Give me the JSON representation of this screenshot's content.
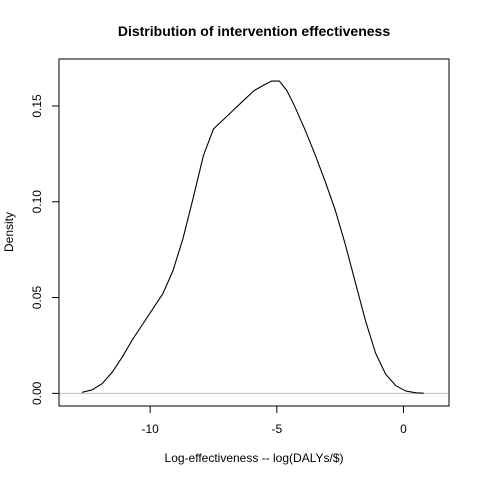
{
  "chart_data": {
    "type": "line",
    "title": "Distribution of intervention effectiveness",
    "xlabel": "Log-effectiveness -- log(DALYs/$)",
    "ylabel": "Density",
    "xlim": [
      -13.6,
      1.8
    ],
    "ylim": [
      -0.0066,
      0.1745
    ],
    "x_ticks": [
      -10,
      -5,
      0
    ],
    "x_tick_labels": [
      "-10",
      "-5",
      "0"
    ],
    "y_ticks": [
      0.0,
      0.05,
      0.1,
      0.15
    ],
    "y_tick_labels": [
      "0.00",
      "0.05",
      "0.10",
      "0.15"
    ],
    "grid": false,
    "legend": "none",
    "baseline_y": 0,
    "colors": {
      "curve": "#000000",
      "baseline": "#bebebe",
      "frame": "#000000"
    },
    "series": [
      {
        "x": [
          -12.7,
          -12.3,
          -11.9,
          -11.5,
          -11.1,
          -10.7,
          -10.3,
          -9.9,
          -9.5,
          -9.1,
          -8.7,
          -8.3,
          -7.9,
          -7.5,
          -7.1,
          -6.7,
          -6.3,
          -5.9,
          -5.5,
          -5.2,
          -4.9,
          -4.6,
          -4.3,
          -3.9,
          -3.5,
          -3.1,
          -2.7,
          -2.3,
          -1.9,
          -1.5,
          -1.1,
          -0.7,
          -0.3,
          0.1,
          0.5,
          0.8
        ],
        "y": [
          0.0005,
          0.0018,
          0.005,
          0.011,
          0.019,
          0.028,
          0.036,
          0.044,
          0.052,
          0.064,
          0.081,
          0.102,
          0.124,
          0.138,
          0.143,
          0.148,
          0.153,
          0.158,
          0.161,
          0.163,
          0.163,
          0.158,
          0.15,
          0.138,
          0.125,
          0.111,
          0.096,
          0.078,
          0.058,
          0.038,
          0.021,
          0.01,
          0.004,
          0.0012,
          0.0003,
          0.0001
        ]
      }
    ]
  }
}
